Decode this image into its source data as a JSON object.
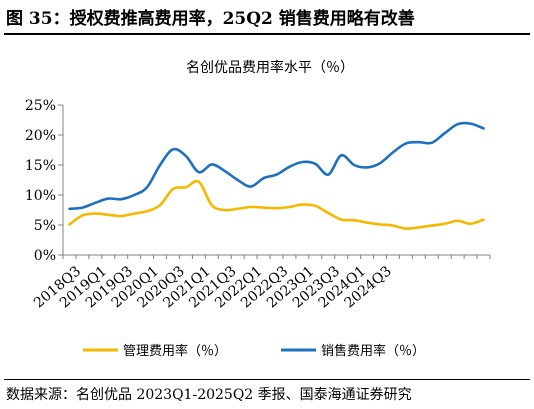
{
  "figure_title": "图 35：授权费推高费用率，25Q2 销售费用略有改善",
  "source_note": "数据来源：名创优品 2023Q1-2025Q2 季报、国泰海通证券研究",
  "colors": {
    "mgmt": "#F5B800",
    "sales": "#1F6FBF",
    "axis": "#808080",
    "text": "#000000"
  },
  "chart_data": {
    "type": "line",
    "title": "名创优品费用率水平（％）",
    "xlabel": "",
    "ylabel": "",
    "ylim": [
      0,
      25
    ],
    "yticks": [
      "0%",
      "5%",
      "10%",
      "15%",
      "20%",
      "25%"
    ],
    "x_labels": [
      "2018Q3",
      "2019Q1",
      "2019Q3",
      "2020Q1",
      "2020Q3",
      "2021Q1",
      "2021Q3",
      "2022Q1",
      "2022Q3",
      "2023Q1",
      "2023Q3",
      "2024Q1",
      "2024Q3"
    ],
    "legend_position": "bottom",
    "grid": false,
    "series": [
      {
        "name": "管理费用率（％）",
        "color": "#F5B800",
        "values": [
          5.1,
          6.6,
          6.9,
          6.7,
          6.5,
          6.9,
          7.3,
          8.3,
          11.0,
          11.3,
          12.2,
          8.3,
          7.5,
          7.7,
          8.0,
          7.9,
          7.8,
          8.0,
          8.4,
          8.2,
          7.0,
          5.9,
          5.8,
          5.4,
          5.1,
          4.9,
          4.4,
          4.6,
          4.9,
          5.2,
          5.7,
          5.2,
          5.9
        ]
      },
      {
        "name": "销售费用率（％）",
        "color": "#1F6FBF",
        "values": [
          7.7,
          7.9,
          8.7,
          9.4,
          9.3,
          10.0,
          11.3,
          15.0,
          17.6,
          16.5,
          13.8,
          15.1,
          14.0,
          12.5,
          11.4,
          12.8,
          13.4,
          14.7,
          15.5,
          15.2,
          13.4,
          16.6,
          15.0,
          14.6,
          15.3,
          17.1,
          18.6,
          18.8,
          18.7,
          20.3,
          21.8,
          21.9,
          21.1
        ]
      }
    ]
  }
}
